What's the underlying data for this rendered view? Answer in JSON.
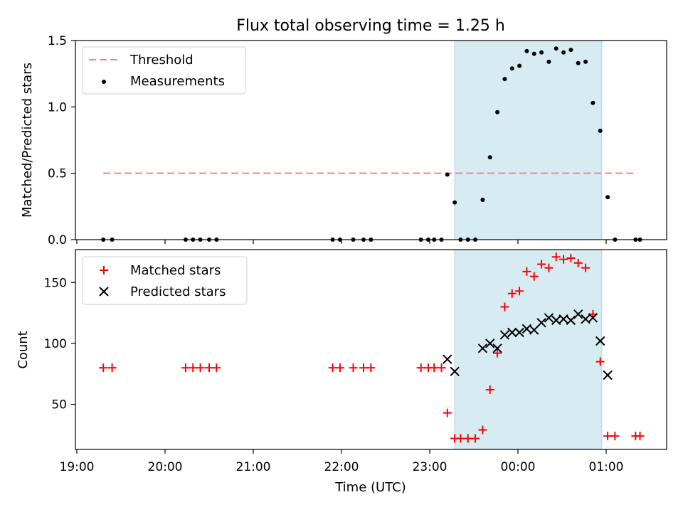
{
  "title": "Flux total observing time = 1.25 h",
  "colors": {
    "threshold": "#ff7f7f",
    "measurement": "#000000",
    "matched": "#ff0000",
    "predicted": "#000000",
    "shade": "#add8e6"
  },
  "chart_data": [
    {
      "type": "scatter",
      "ylabel": "Matched/Predicted stars",
      "ylim": [
        0,
        1.5
      ],
      "yticks": [
        "0.0",
        "0.5",
        "1.0",
        "1.5"
      ],
      "legend": {
        "placement": "top-left",
        "entries": [
          "Threshold",
          "Measurements"
        ]
      },
      "shaded_interval": [
        "23:17",
        "00:57"
      ],
      "threshold": {
        "name": "Threshold",
        "y": 0.5,
        "x_range": [
          "19:18",
          "01:21"
        ]
      },
      "series": [
        {
          "name": "Measurements",
          "marker": "dot",
          "points": [
            [
              "19:18",
              0
            ],
            [
              "19:24",
              0
            ],
            [
              "20:14",
              0
            ],
            [
              "20:19",
              0
            ],
            [
              "20:24",
              0
            ],
            [
              "20:30",
              0
            ],
            [
              "20:35",
              0
            ],
            [
              "21:54",
              0
            ],
            [
              "21:59",
              0
            ],
            [
              "22:08",
              0
            ],
            [
              "22:15",
              0
            ],
            [
              "22:20",
              0
            ],
            [
              "22:54",
              0
            ],
            [
              "22:59",
              0
            ],
            [
              "23:03",
              0
            ],
            [
              "23:08",
              0
            ],
            [
              "23:12",
              0.49
            ],
            [
              "23:17",
              0.28
            ],
            [
              "23:21",
              0
            ],
            [
              "23:26",
              0
            ],
            [
              "23:31",
              0
            ],
            [
              "23:36",
              0.3
            ],
            [
              "23:41",
              0.62
            ],
            [
              "23:46",
              0.96
            ],
            [
              "23:51",
              1.21
            ],
            [
              "23:56",
              1.29
            ],
            [
              "00:01",
              1.31
            ],
            [
              "00:06",
              1.42
            ],
            [
              "00:11",
              1.4
            ],
            [
              "00:16",
              1.41
            ],
            [
              "00:21",
              1.34
            ],
            [
              "00:26",
              1.44
            ],
            [
              "00:31",
              1.41
            ],
            [
              "00:36",
              1.43
            ],
            [
              "00:41",
              1.33
            ],
            [
              "00:46",
              1.34
            ],
            [
              "00:51",
              1.03
            ],
            [
              "00:56",
              0.82
            ],
            [
              "01:01",
              0.32
            ],
            [
              "01:06",
              0
            ],
            [
              "01:20",
              0
            ],
            [
              "01:23",
              0
            ]
          ]
        }
      ]
    },
    {
      "type": "scatter",
      "xlabel": "Time (UTC)",
      "ylabel": "Count",
      "ylim": [
        13,
        177
      ],
      "yticks": [
        "50",
        "100",
        "150"
      ],
      "xticks": [
        "19:00",
        "20:00",
        "21:00",
        "22:00",
        "23:00",
        "00:00",
        "01:00"
      ],
      "legend": {
        "placement": "top-left",
        "entries": [
          "Matched stars",
          "Predicted stars"
        ]
      },
      "shaded_interval": [
        "23:17",
        "00:57"
      ],
      "series": [
        {
          "name": "Matched stars",
          "marker": "plus",
          "points": [
            [
              "19:18",
              80
            ],
            [
              "19:24",
              80
            ],
            [
              "20:14",
              80
            ],
            [
              "20:19",
              80
            ],
            [
              "20:24",
              80
            ],
            [
              "20:30",
              80
            ],
            [
              "20:35",
              80
            ],
            [
              "21:54",
              80
            ],
            [
              "21:59",
              80
            ],
            [
              "22:08",
              80
            ],
            [
              "22:15",
              80
            ],
            [
              "22:20",
              80
            ],
            [
              "22:54",
              80
            ],
            [
              "22:59",
              80
            ],
            [
              "23:03",
              80
            ],
            [
              "23:08",
              80
            ],
            [
              "23:12",
              43
            ],
            [
              "23:17",
              22
            ],
            [
              "23:21",
              22
            ],
            [
              "23:26",
              22
            ],
            [
              "23:31",
              22
            ],
            [
              "23:36",
              29
            ],
            [
              "23:41",
              62
            ],
            [
              "23:46",
              92
            ],
            [
              "23:51",
              130
            ],
            [
              "23:56",
              141
            ],
            [
              "00:01",
              143
            ],
            [
              "00:06",
              159
            ],
            [
              "00:11",
              155
            ],
            [
              "00:16",
              165
            ],
            [
              "00:21",
              162
            ],
            [
              "00:26",
              171
            ],
            [
              "00:31",
              169
            ],
            [
              "00:36",
              170
            ],
            [
              "00:41",
              166
            ],
            [
              "00:46",
              162
            ],
            [
              "00:51",
              124
            ],
            [
              "00:56",
              85
            ],
            [
              "01:01",
              24
            ],
            [
              "01:06",
              24
            ],
            [
              "01:20",
              24
            ],
            [
              "01:23",
              24
            ]
          ]
        },
        {
          "name": "Predicted stars",
          "marker": "x",
          "points": [
            [
              "23:12",
              87
            ],
            [
              "23:17",
              77
            ],
            [
              "23:36",
              96
            ],
            [
              "23:41",
              100
            ],
            [
              "23:46",
              96
            ],
            [
              "23:51",
              107
            ],
            [
              "23:56",
              109
            ],
            [
              "00:01",
              109
            ],
            [
              "00:06",
              112
            ],
            [
              "00:11",
              111
            ],
            [
              "00:16",
              117
            ],
            [
              "00:21",
              121
            ],
            [
              "00:26",
              119
            ],
            [
              "00:31",
              120
            ],
            [
              "00:36",
              119
            ],
            [
              "00:41",
              124
            ],
            [
              "00:46",
              120
            ],
            [
              "00:51",
              121
            ],
            [
              "00:56",
              102
            ],
            [
              "01:01",
              74
            ]
          ]
        }
      ]
    }
  ]
}
